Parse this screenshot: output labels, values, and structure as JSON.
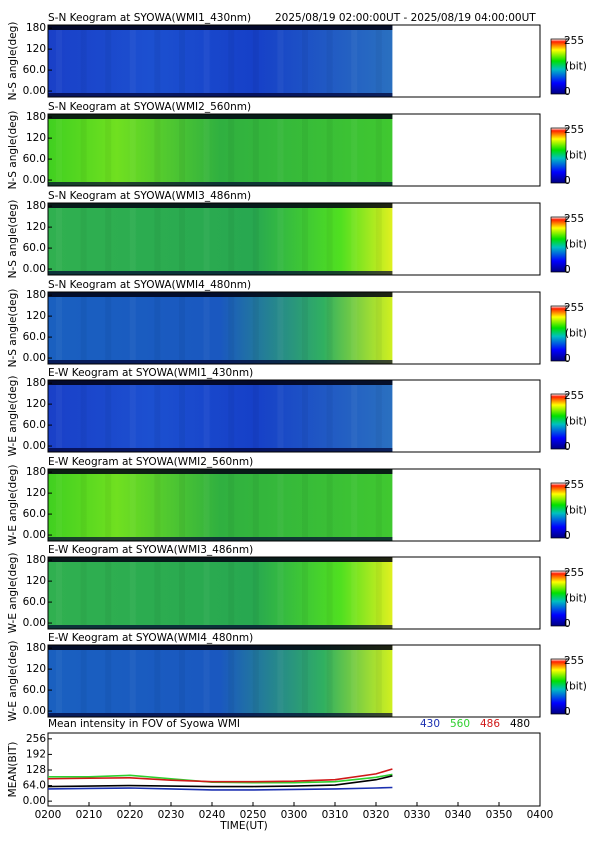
{
  "chart_data": [
    {
      "type": "keogram",
      "title": "S-N Keogram at SYOWA(WMI1_430nm)",
      "subtitle": "2025/08/19 02:00:00UT - 2025/08/19 04:00:00UT",
      "ylabel": "N-S angle(deg)",
      "ylim": [
        -17,
        189
      ],
      "yticks": [
        {
          "value": 0,
          "label": "0.00"
        },
        {
          "value": 60,
          "label": "60.0"
        },
        120,
        180
      ],
      "colorbar_ticks": [
        0,
        255
      ],
      "colorbar_label": "(bit)"
    },
    {
      "type": "keogram",
      "title": "S-N Keogram at SYOWA(WMI2_560nm)",
      "ylabel": "N-S angle(deg)",
      "ylim": [
        -17,
        189
      ],
      "yticks": [
        {
          "value": 0,
          "label": "0.00"
        },
        {
          "value": 60,
          "label": "60.0"
        },
        120,
        180
      ],
      "colorbar_ticks": [
        0,
        255
      ],
      "colorbar_label": "(bit)"
    },
    {
      "type": "keogram",
      "title": "S-N Keogram at SYOWA(WMI3_486nm)",
      "ylabel": "N-S angle(deg)",
      "ylim": [
        -17,
        189
      ],
      "yticks": [
        {
          "value": 0,
          "label": "0.00"
        },
        {
          "value": 60,
          "label": "60.0"
        },
        120,
        180
      ],
      "colorbar_ticks": [
        0,
        255
      ],
      "colorbar_label": "(bit)"
    },
    {
      "type": "keogram",
      "title": "S-N Keogram at SYOWA(WMI4_480nm)",
      "ylabel": "N-S angle(deg)",
      "ylim": [
        -17,
        189
      ],
      "yticks": [
        {
          "value": 0,
          "label": "0.00"
        },
        {
          "value": 60,
          "label": "60.0"
        },
        120,
        180
      ],
      "colorbar_ticks": [
        0,
        255
      ],
      "colorbar_label": "(bit)"
    },
    {
      "type": "keogram",
      "title": "E-W Keogram at SYOWA(WMI1_430nm)",
      "ylabel": "W-E angle(deg)",
      "ylim": [
        -17,
        189
      ],
      "yticks": [
        {
          "value": 0,
          "label": "0.00"
        },
        {
          "value": 60,
          "label": "60.0"
        },
        120,
        180
      ],
      "colorbar_ticks": [
        0,
        255
      ],
      "colorbar_label": "(bit)"
    },
    {
      "type": "keogram",
      "title": "E-W Keogram at SYOWA(WMI2_560nm)",
      "ylabel": "W-E angle(deg)",
      "ylim": [
        -17,
        189
      ],
      "yticks": [
        {
          "value": 0,
          "label": "0.00"
        },
        {
          "value": 60,
          "label": "60.0"
        },
        120,
        180
      ],
      "colorbar_ticks": [
        0,
        255
      ],
      "colorbar_label": "(bit)"
    },
    {
      "type": "keogram",
      "title": "E-W Keogram at SYOWA(WMI3_486nm)",
      "ylabel": "W-E angle(deg)",
      "ylim": [
        -17,
        189
      ],
      "yticks": [
        {
          "value": 0,
          "label": "0.00"
        },
        {
          "value": 60,
          "label": "60.0"
        },
        120,
        180
      ],
      "colorbar_ticks": [
        0,
        255
      ],
      "colorbar_label": "(bit)"
    },
    {
      "type": "keogram",
      "title": "E-W Keogram at SYOWA(WMI4_480nm)",
      "ylabel": "W-E angle(deg)",
      "ylim": [
        -17,
        189
      ],
      "yticks": [
        {
          "value": 0,
          "label": "0.00"
        },
        {
          "value": 60,
          "label": "60.0"
        },
        120,
        180
      ],
      "colorbar_ticks": [
        0,
        255
      ],
      "colorbar_label": "(bit)"
    },
    {
      "type": "line",
      "title": "Mean intensity in FOV of Syowa WMI",
      "ylabel": "MEAN(BIT)",
      "xlabel": "TIME(UT)",
      "x": [
        120,
        130,
        140,
        150,
        160,
        170,
        180,
        190,
        200,
        204
      ],
      "xlim": [
        120,
        240
      ],
      "xticks": [
        {
          "value": 120,
          "label": "0200"
        },
        {
          "value": 130,
          "label": "0210"
        },
        {
          "value": 140,
          "label": "0220"
        },
        {
          "value": 150,
          "label": "0230"
        },
        {
          "value": 160,
          "label": "0240"
        },
        {
          "value": 170,
          "label": "0250"
        },
        {
          "value": 180,
          "label": "0300"
        },
        {
          "value": 190,
          "label": "0310"
        },
        {
          "value": 200,
          "label": "0320"
        },
        {
          "value": 210,
          "label": "0330"
        },
        {
          "value": 220,
          "label": "0340"
        },
        {
          "value": 230,
          "label": "0350"
        },
        {
          "value": 240,
          "label": "0400"
        }
      ],
      "ylim": [
        -20,
        280
      ],
      "yticks": [
        {
          "value": 0,
          "label": "0.00"
        },
        {
          "value": 64,
          "label": "64.0"
        },
        128,
        192,
        256
      ],
      "series": [
        {
          "name": "430",
          "color": "#1a2fb0",
          "values": [
            50,
            52,
            54,
            50,
            46,
            46,
            48,
            50,
            54,
            56
          ]
        },
        {
          "name": "560",
          "color": "#2fd02f",
          "values": [
            100,
            100,
            106,
            92,
            78,
            76,
            76,
            80,
            98,
            110
          ]
        },
        {
          "name": "486",
          "color": "#d01818",
          "values": [
            92,
            94,
            96,
            86,
            80,
            80,
            82,
            88,
            112,
            132
          ]
        },
        {
          "name": "480",
          "color": "#000000",
          "values": [
            60,
            62,
            64,
            62,
            60,
            60,
            62,
            66,
            88,
            104
          ]
        }
      ]
    }
  ]
}
